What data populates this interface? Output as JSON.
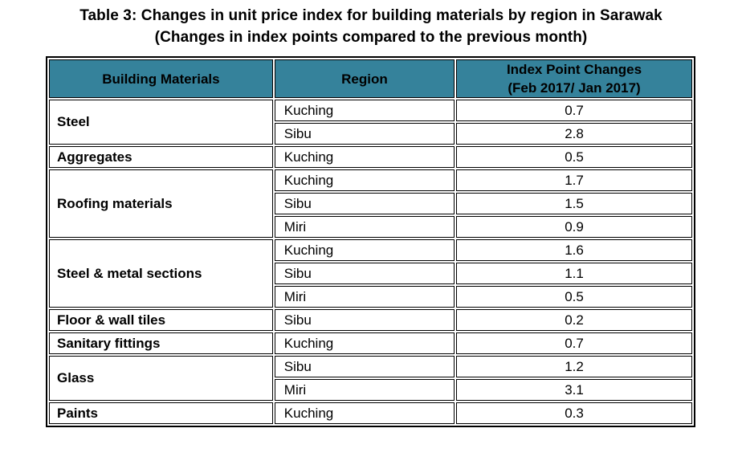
{
  "page": {
    "title_line1": "Table 3: Changes in unit price index for building materials by region in Sarawak",
    "title_line2": "(Changes in index points compared to the previous month)"
  },
  "table": {
    "headers": {
      "materials": "Building Materials",
      "region": "Region",
      "index_line1": "Index Point Changes",
      "index_line2": "(Feb 2017/ Jan 2017)"
    },
    "groups": [
      {
        "material": "Steel",
        "rows": [
          {
            "region": "Kuching",
            "value": "0.7"
          },
          {
            "region": "Sibu",
            "value": "2.8"
          }
        ]
      },
      {
        "material": "Aggregates",
        "rows": [
          {
            "region": "Kuching",
            "value": "0.5"
          }
        ]
      },
      {
        "material": "Roofing materials",
        "rows": [
          {
            "region": "Kuching",
            "value": "1.7"
          },
          {
            "region": "Sibu",
            "value": "1.5"
          },
          {
            "region": "Miri",
            "value": "0.9"
          }
        ]
      },
      {
        "material": "Steel & metal sections",
        "rows": [
          {
            "region": "Kuching",
            "value": "1.6"
          },
          {
            "region": "Sibu",
            "value": "1.1"
          },
          {
            "region": "Miri",
            "value": "0.5"
          }
        ]
      },
      {
        "material": "Floor & wall tiles",
        "rows": [
          {
            "region": "Sibu",
            "value": "0.2"
          }
        ]
      },
      {
        "material": "Sanitary fittings",
        "rows": [
          {
            "region": "Kuching",
            "value": "0.7"
          }
        ]
      },
      {
        "material": "Glass",
        "rows": [
          {
            "region": "Sibu",
            "value": "1.2"
          },
          {
            "region": "Miri",
            "value": "3.1"
          }
        ]
      },
      {
        "material": "Paints",
        "rows": [
          {
            "region": "Kuching",
            "value": "0.3"
          }
        ]
      }
    ]
  },
  "colors": {
    "header_bg": "#35829B",
    "border": "#000000",
    "text": "#000000"
  },
  "chart_data": {
    "type": "table",
    "title": "Table 3: Changes in unit price index for building materials by region in Sarawak (Changes in index points compared to the previous month)",
    "columns": [
      "Building Materials",
      "Region",
      "Index Point Changes (Feb 2017/ Jan 2017)"
    ],
    "rows": [
      [
        "Steel",
        "Kuching",
        0.7
      ],
      [
        "Steel",
        "Sibu",
        2.8
      ],
      [
        "Aggregates",
        "Kuching",
        0.5
      ],
      [
        "Roofing materials",
        "Kuching",
        1.7
      ],
      [
        "Roofing materials",
        "Sibu",
        1.5
      ],
      [
        "Roofing materials",
        "Miri",
        0.9
      ],
      [
        "Steel & metal sections",
        "Kuching",
        1.6
      ],
      [
        "Steel & metal sections",
        "Sibu",
        1.1
      ],
      [
        "Steel & metal sections",
        "Miri",
        0.5
      ],
      [
        "Floor & wall tiles",
        "Sibu",
        0.2
      ],
      [
        "Sanitary fittings",
        "Kuching",
        0.7
      ],
      [
        "Glass",
        "Sibu",
        1.2
      ],
      [
        "Glass",
        "Miri",
        3.1
      ],
      [
        "Paints",
        "Kuching",
        0.3
      ]
    ]
  }
}
